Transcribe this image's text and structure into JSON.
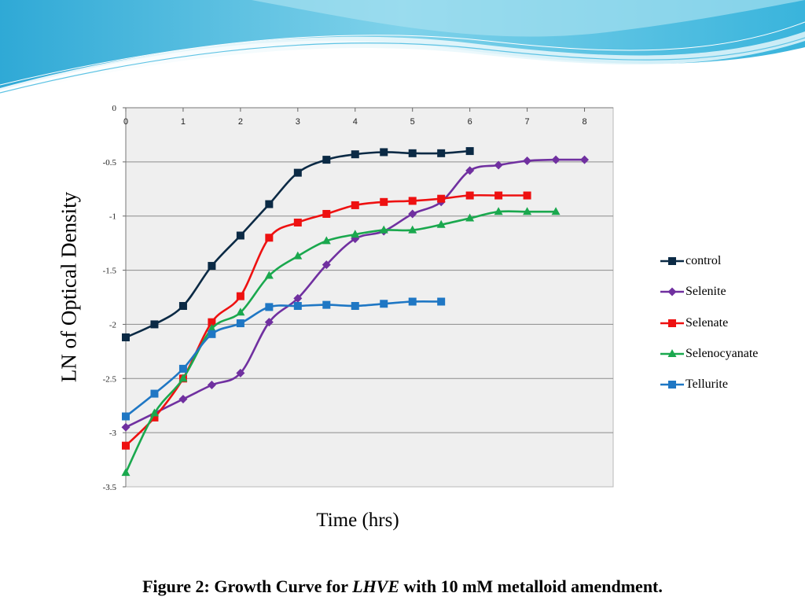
{
  "slide": {
    "ylabel": "LN of Optical Density",
    "xlabel": "Time (hrs)",
    "caption_prefix": "Figure 2: Growth Curve for ",
    "caption_italic": "LHVE",
    "caption_suffix": " with 10 mM metalloid amendment."
  },
  "chart_data": {
    "type": "line",
    "title": "",
    "xlabel": "Time (hrs)",
    "ylabel": "LN of Optical Density",
    "xlim": [
      0,
      8.5
    ],
    "ylim": [
      -3.5,
      0
    ],
    "x_ticks": [
      0,
      1,
      2,
      3,
      4,
      5,
      6,
      7,
      8
    ],
    "y_ticks": [
      0,
      -0.5,
      -1,
      -1.5,
      -2,
      -2.5,
      -3,
      -3.5
    ],
    "y_tick_labels": [
      "0",
      "-0.5",
      "-1",
      "-1.5",
      "-2",
      "-2.5",
      "-3",
      "-3.5"
    ],
    "grid": "horizontal",
    "legend_position": "right",
    "series": [
      {
        "name": "control",
        "color": "#0b2a45",
        "marker": "square",
        "x": [
          0,
          0.5,
          1,
          1.5,
          2,
          2.5,
          3,
          3.5,
          4,
          4.5,
          5,
          5.5,
          6
        ],
        "y": [
          -2.12,
          -2.0,
          -1.83,
          -1.46,
          -1.18,
          -0.89,
          -0.6,
          -0.48,
          -0.43,
          -0.41,
          -0.42,
          -0.42,
          -0.4
        ]
      },
      {
        "name": "Selenite",
        "color": "#7030a0",
        "marker": "diamond",
        "x": [
          0,
          1,
          1.5,
          2,
          2.5,
          3,
          3.5,
          4,
          4.5,
          5,
          5.5,
          6,
          6.5,
          7,
          7.5,
          8
        ],
        "y": [
          -2.95,
          -2.69,
          -2.56,
          -2.45,
          -1.98,
          -1.76,
          -1.45,
          -1.21,
          -1.14,
          -0.98,
          -0.87,
          -0.58,
          -0.53,
          -0.49,
          -0.48,
          -0.48
        ]
      },
      {
        "name": "Selenate",
        "color": "#ee1111",
        "marker": "square",
        "x": [
          0,
          0.5,
          1,
          1.5,
          2,
          2.5,
          3,
          3.5,
          4,
          4.5,
          5,
          5.5,
          6,
          6.5,
          7
        ],
        "y": [
          -3.12,
          -2.86,
          -2.5,
          -1.98,
          -1.74,
          -1.2,
          -1.06,
          -0.98,
          -0.9,
          -0.87,
          -0.86,
          -0.84,
          -0.81,
          -0.81,
          -0.81
        ]
      },
      {
        "name": "Selenocyanate",
        "color": "#1aa84e",
        "marker": "triangle",
        "x": [
          0,
          0.5,
          1,
          1.5,
          2,
          2.5,
          3,
          3.5,
          4,
          4.5,
          5,
          5.5,
          6,
          6.5,
          7,
          7.5
        ],
        "y": [
          -3.37,
          -2.82,
          -2.5,
          -2.04,
          -1.89,
          -1.55,
          -1.37,
          -1.23,
          -1.17,
          -1.13,
          -1.13,
          -1.08,
          -1.02,
          -0.96,
          -0.96,
          -0.96
        ]
      },
      {
        "name": "Tellurite",
        "color": "#1f77c4",
        "marker": "square",
        "x": [
          0,
          0.5,
          1,
          1.5,
          2,
          2.5,
          3,
          3.5,
          4,
          4.5,
          5,
          5.5
        ],
        "y": [
          -2.85,
          -2.64,
          -2.41,
          -2.09,
          -1.99,
          -1.84,
          -1.83,
          -1.82,
          -1.83,
          -1.81,
          -1.79,
          -1.79
        ]
      }
    ]
  }
}
